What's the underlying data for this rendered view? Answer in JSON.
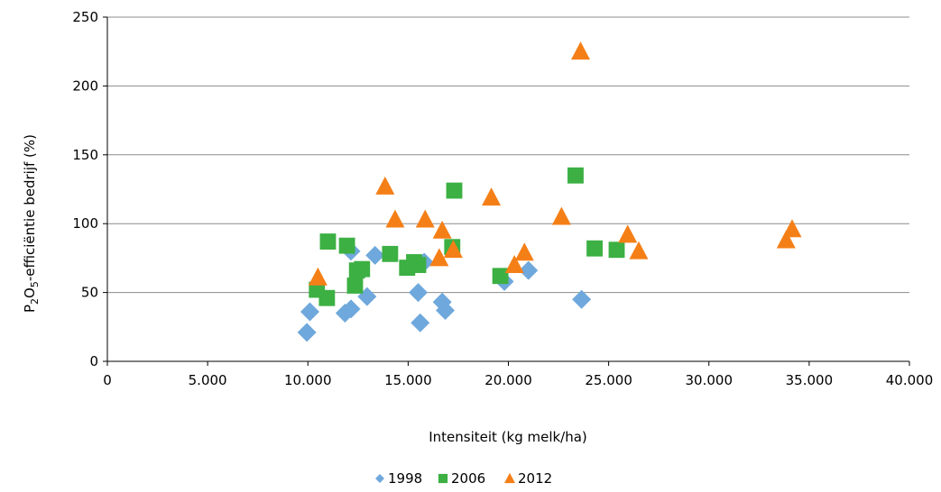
{
  "chart_data": {
    "type": "scatter",
    "xlabel": "Intensiteit (kg melk/ha)",
    "ylabel": {
      "prefix": "P",
      "sub1": "2",
      "mid": "O",
      "sub2": "5",
      "suffix": "-efficiëntie bedrijf (%)"
    },
    "xlim": [
      0,
      40000
    ],
    "ylim": [
      0,
      250
    ],
    "x_ticks": [
      0,
      5000,
      10000,
      15000,
      20000,
      25000,
      30000,
      35000,
      40000
    ],
    "x_tick_labels": [
      "0",
      "5.000",
      "10.000",
      "15.000",
      "20.000",
      "25.000",
      "30.000",
      "35.000",
      "40.000"
    ],
    "y_ticks": [
      0,
      50,
      100,
      150,
      200,
      250
    ],
    "y_tick_labels": [
      "0",
      "50",
      "100",
      "150",
      "200",
      "250"
    ],
    "grid": "horizontal",
    "legend_position": "bottom",
    "series": [
      {
        "name": "1998",
        "marker": "diamond",
        "color": "#6fa8dc",
        "points": [
          [
            9950,
            21
          ],
          [
            10100,
            36
          ],
          [
            11850,
            35
          ],
          [
            12150,
            38
          ],
          [
            12150,
            80
          ],
          [
            12950,
            47
          ],
          [
            13350,
            77
          ],
          [
            15500,
            50
          ],
          [
            15600,
            28
          ],
          [
            15800,
            72
          ],
          [
            16700,
            43
          ],
          [
            16850,
            37
          ],
          [
            19800,
            58
          ],
          [
            21000,
            66
          ],
          [
            23650,
            45
          ]
        ]
      },
      {
        "name": "2006",
        "marker": "square",
        "color": "#3cb043",
        "points": [
          [
            10450,
            52
          ],
          [
            10950,
            46
          ],
          [
            11000,
            87
          ],
          [
            11950,
            84
          ],
          [
            12350,
            55
          ],
          [
            12450,
            66
          ],
          [
            12700,
            67
          ],
          [
            14100,
            78
          ],
          [
            14950,
            68
          ],
          [
            15300,
            72
          ],
          [
            15500,
            70
          ],
          [
            17200,
            83
          ],
          [
            17300,
            124
          ],
          [
            19600,
            62
          ],
          [
            23350,
            135
          ],
          [
            24300,
            82
          ],
          [
            25400,
            81
          ]
        ]
      },
      {
        "name": "2012",
        "marker": "triangle",
        "color": "#f57f17",
        "points": [
          [
            10500,
            61
          ],
          [
            13850,
            127
          ],
          [
            14350,
            103
          ],
          [
            15850,
            103
          ],
          [
            16550,
            75
          ],
          [
            16700,
            95
          ],
          [
            17250,
            81
          ],
          [
            19150,
            119
          ],
          [
            20300,
            70
          ],
          [
            20800,
            79
          ],
          [
            22650,
            105
          ],
          [
            23600,
            225
          ],
          [
            25950,
            92
          ],
          [
            26500,
            80
          ],
          [
            33850,
            88
          ],
          [
            34150,
            96
          ]
        ]
      }
    ]
  }
}
